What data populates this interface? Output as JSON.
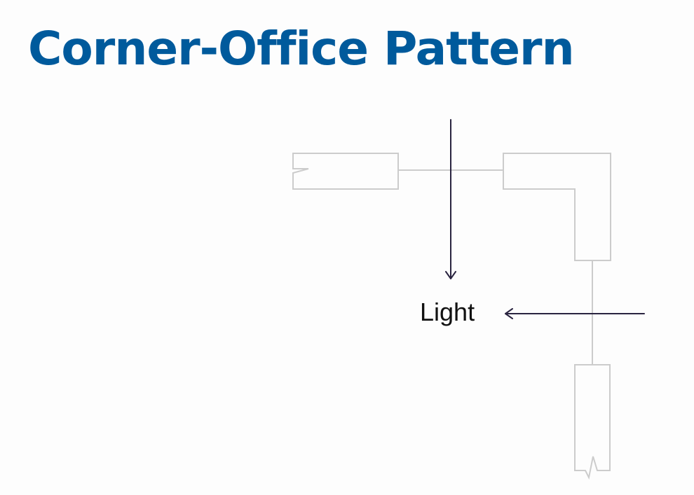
{
  "slide": {
    "title": "Corner-Office Pattern"
  },
  "diagram": {
    "label": "Light"
  },
  "colors": {
    "title": "#005a9c",
    "label": "#111111",
    "wall": "#cccccc",
    "arrow": "#2a2440",
    "background": "#fdfdfd"
  }
}
